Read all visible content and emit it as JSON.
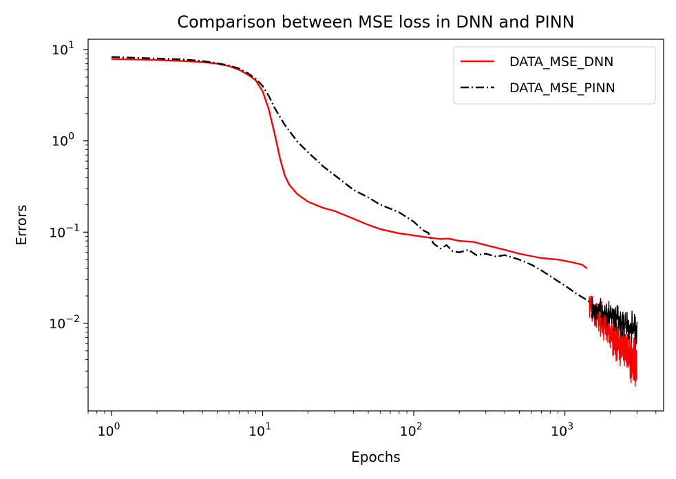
{
  "chart_data": {
    "type": "line",
    "title": "Comparison between MSE loss in DNN and PINN",
    "xlabel": "Epochs",
    "ylabel": "Errors",
    "xscale": "log",
    "yscale": "log",
    "xlim": [
      0.7,
      4500
    ],
    "ylim": [
      0.0011,
      13
    ],
    "grid": false,
    "legend_position": "top-right",
    "x_ticks": [
      {
        "value": 1,
        "base": "10",
        "exp": "0"
      },
      {
        "value": 10,
        "base": "10",
        "exp": "1"
      },
      {
        "value": 100,
        "base": "10",
        "exp": "2"
      },
      {
        "value": 1000,
        "base": "10",
        "exp": "3"
      }
    ],
    "y_ticks": [
      {
        "value": 0.01,
        "base": "10",
        "exp": "−2"
      },
      {
        "value": 0.1,
        "base": "10",
        "exp": "−1"
      },
      {
        "value": 1,
        "base": "10",
        "exp": "0"
      },
      {
        "value": 10,
        "base": "10",
        "exp": "1"
      }
    ],
    "series": [
      {
        "name": "DATA_MSE_DNN",
        "color": "#ff0000",
        "style": "solid",
        "x": [
          1,
          2,
          3,
          4,
          5,
          6,
          7,
          8,
          9,
          10,
          11,
          12,
          13,
          14,
          15,
          17,
          20,
          25,
          30,
          40,
          50,
          60,
          80,
          100,
          120,
          150,
          170,
          200,
          250,
          300,
          400,
          500,
          700,
          900,
          1100,
          1300,
          1400
        ],
        "y": [
          7.9,
          7.7,
          7.5,
          7.3,
          7.0,
          6.6,
          6.0,
          5.3,
          4.6,
          3.5,
          2.2,
          1.2,
          0.65,
          0.42,
          0.33,
          0.26,
          0.215,
          0.185,
          0.17,
          0.14,
          0.12,
          0.108,
          0.097,
          0.092,
          0.088,
          0.084,
          0.085,
          0.08,
          0.078,
          0.072,
          0.064,
          0.058,
          0.052,
          0.05,
          0.047,
          0.044,
          0.04
        ],
        "noisy_tail": {
          "x_start": 1450,
          "x_end": 3000,
          "upper_start": 0.02,
          "upper_end": 0.0055,
          "lower_start": 0.013,
          "lower_end": 0.0022
        }
      },
      {
        "name": "DATA_MSE_PINN",
        "color": "#000000",
        "style": "dashdot",
        "x": [
          1,
          2,
          3,
          4,
          5,
          6,
          7,
          8,
          9,
          10,
          11,
          12,
          14,
          17,
          20,
          25,
          30,
          40,
          50,
          60,
          80,
          100,
          115,
          125,
          135,
          150,
          165,
          180,
          200,
          230,
          260,
          300,
          350,
          400,
          500,
          600,
          700,
          800,
          900,
          1000,
          1200,
          1400,
          1600,
          1800,
          2000
        ],
        "y": [
          8.3,
          8.0,
          7.8,
          7.5,
          7.1,
          6.7,
          6.2,
          5.5,
          4.8,
          4.0,
          3.1,
          2.3,
          1.5,
          0.98,
          0.75,
          0.53,
          0.42,
          0.29,
          0.24,
          0.2,
          0.165,
          0.13,
          0.105,
          0.098,
          0.075,
          0.066,
          0.072,
          0.062,
          0.06,
          0.064,
          0.056,
          0.058,
          0.054,
          0.056,
          0.05,
          0.044,
          0.038,
          0.033,
          0.029,
          0.026,
          0.021,
          0.018,
          0.015,
          0.013,
          0.0118
        ],
        "noisy_tail": {
          "x_start": 1500,
          "x_end": 3000,
          "upper_start": 0.017,
          "upper_end": 0.0105,
          "lower_start": 0.014,
          "lower_end": 0.0068
        }
      }
    ]
  }
}
